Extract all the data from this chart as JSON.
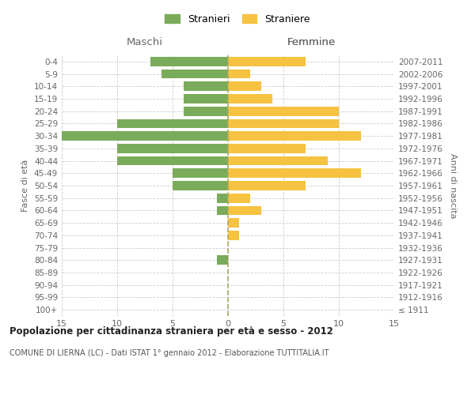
{
  "age_groups": [
    "100+",
    "95-99",
    "90-94",
    "85-89",
    "80-84",
    "75-79",
    "70-74",
    "65-69",
    "60-64",
    "55-59",
    "50-54",
    "45-49",
    "40-44",
    "35-39",
    "30-34",
    "25-29",
    "20-24",
    "15-19",
    "10-14",
    "5-9",
    "0-4"
  ],
  "birth_years": [
    "≤ 1911",
    "1912-1916",
    "1917-1921",
    "1922-1926",
    "1927-1931",
    "1932-1936",
    "1937-1941",
    "1942-1946",
    "1947-1951",
    "1952-1956",
    "1957-1961",
    "1962-1966",
    "1967-1971",
    "1972-1976",
    "1977-1981",
    "1982-1986",
    "1987-1991",
    "1992-1996",
    "1997-2001",
    "2002-2006",
    "2007-2011"
  ],
  "males": [
    0,
    0,
    0,
    0,
    1,
    0,
    0,
    0,
    1,
    1,
    5,
    5,
    10,
    10,
    15,
    10,
    4,
    4,
    4,
    6,
    7
  ],
  "females": [
    0,
    0,
    0,
    0,
    0,
    0,
    1,
    1,
    3,
    2,
    7,
    12,
    9,
    7,
    12,
    10,
    10,
    4,
    3,
    2,
    7
  ],
  "male_color": "#7aab5a",
  "female_color": "#f5c242",
  "title_main": "Popolazione per cittadinanza straniera per età e sesso - 2012",
  "subtitle": "COMUNE DI LIERNA (LC) - Dati ISTAT 1° gennaio 2012 - Elaborazione TUTTITALIA.IT",
  "ylabel_left": "Fasce di età",
  "ylabel_right": "Anni di nascita",
  "xlabel_left": "Maschi",
  "xlabel_right": "Femmine",
  "legend_male": "Stranieri",
  "legend_female": "Straniere",
  "xlim": 15,
  "background_color": "#ffffff",
  "grid_color": "#cccccc",
  "bar_height": 0.75
}
